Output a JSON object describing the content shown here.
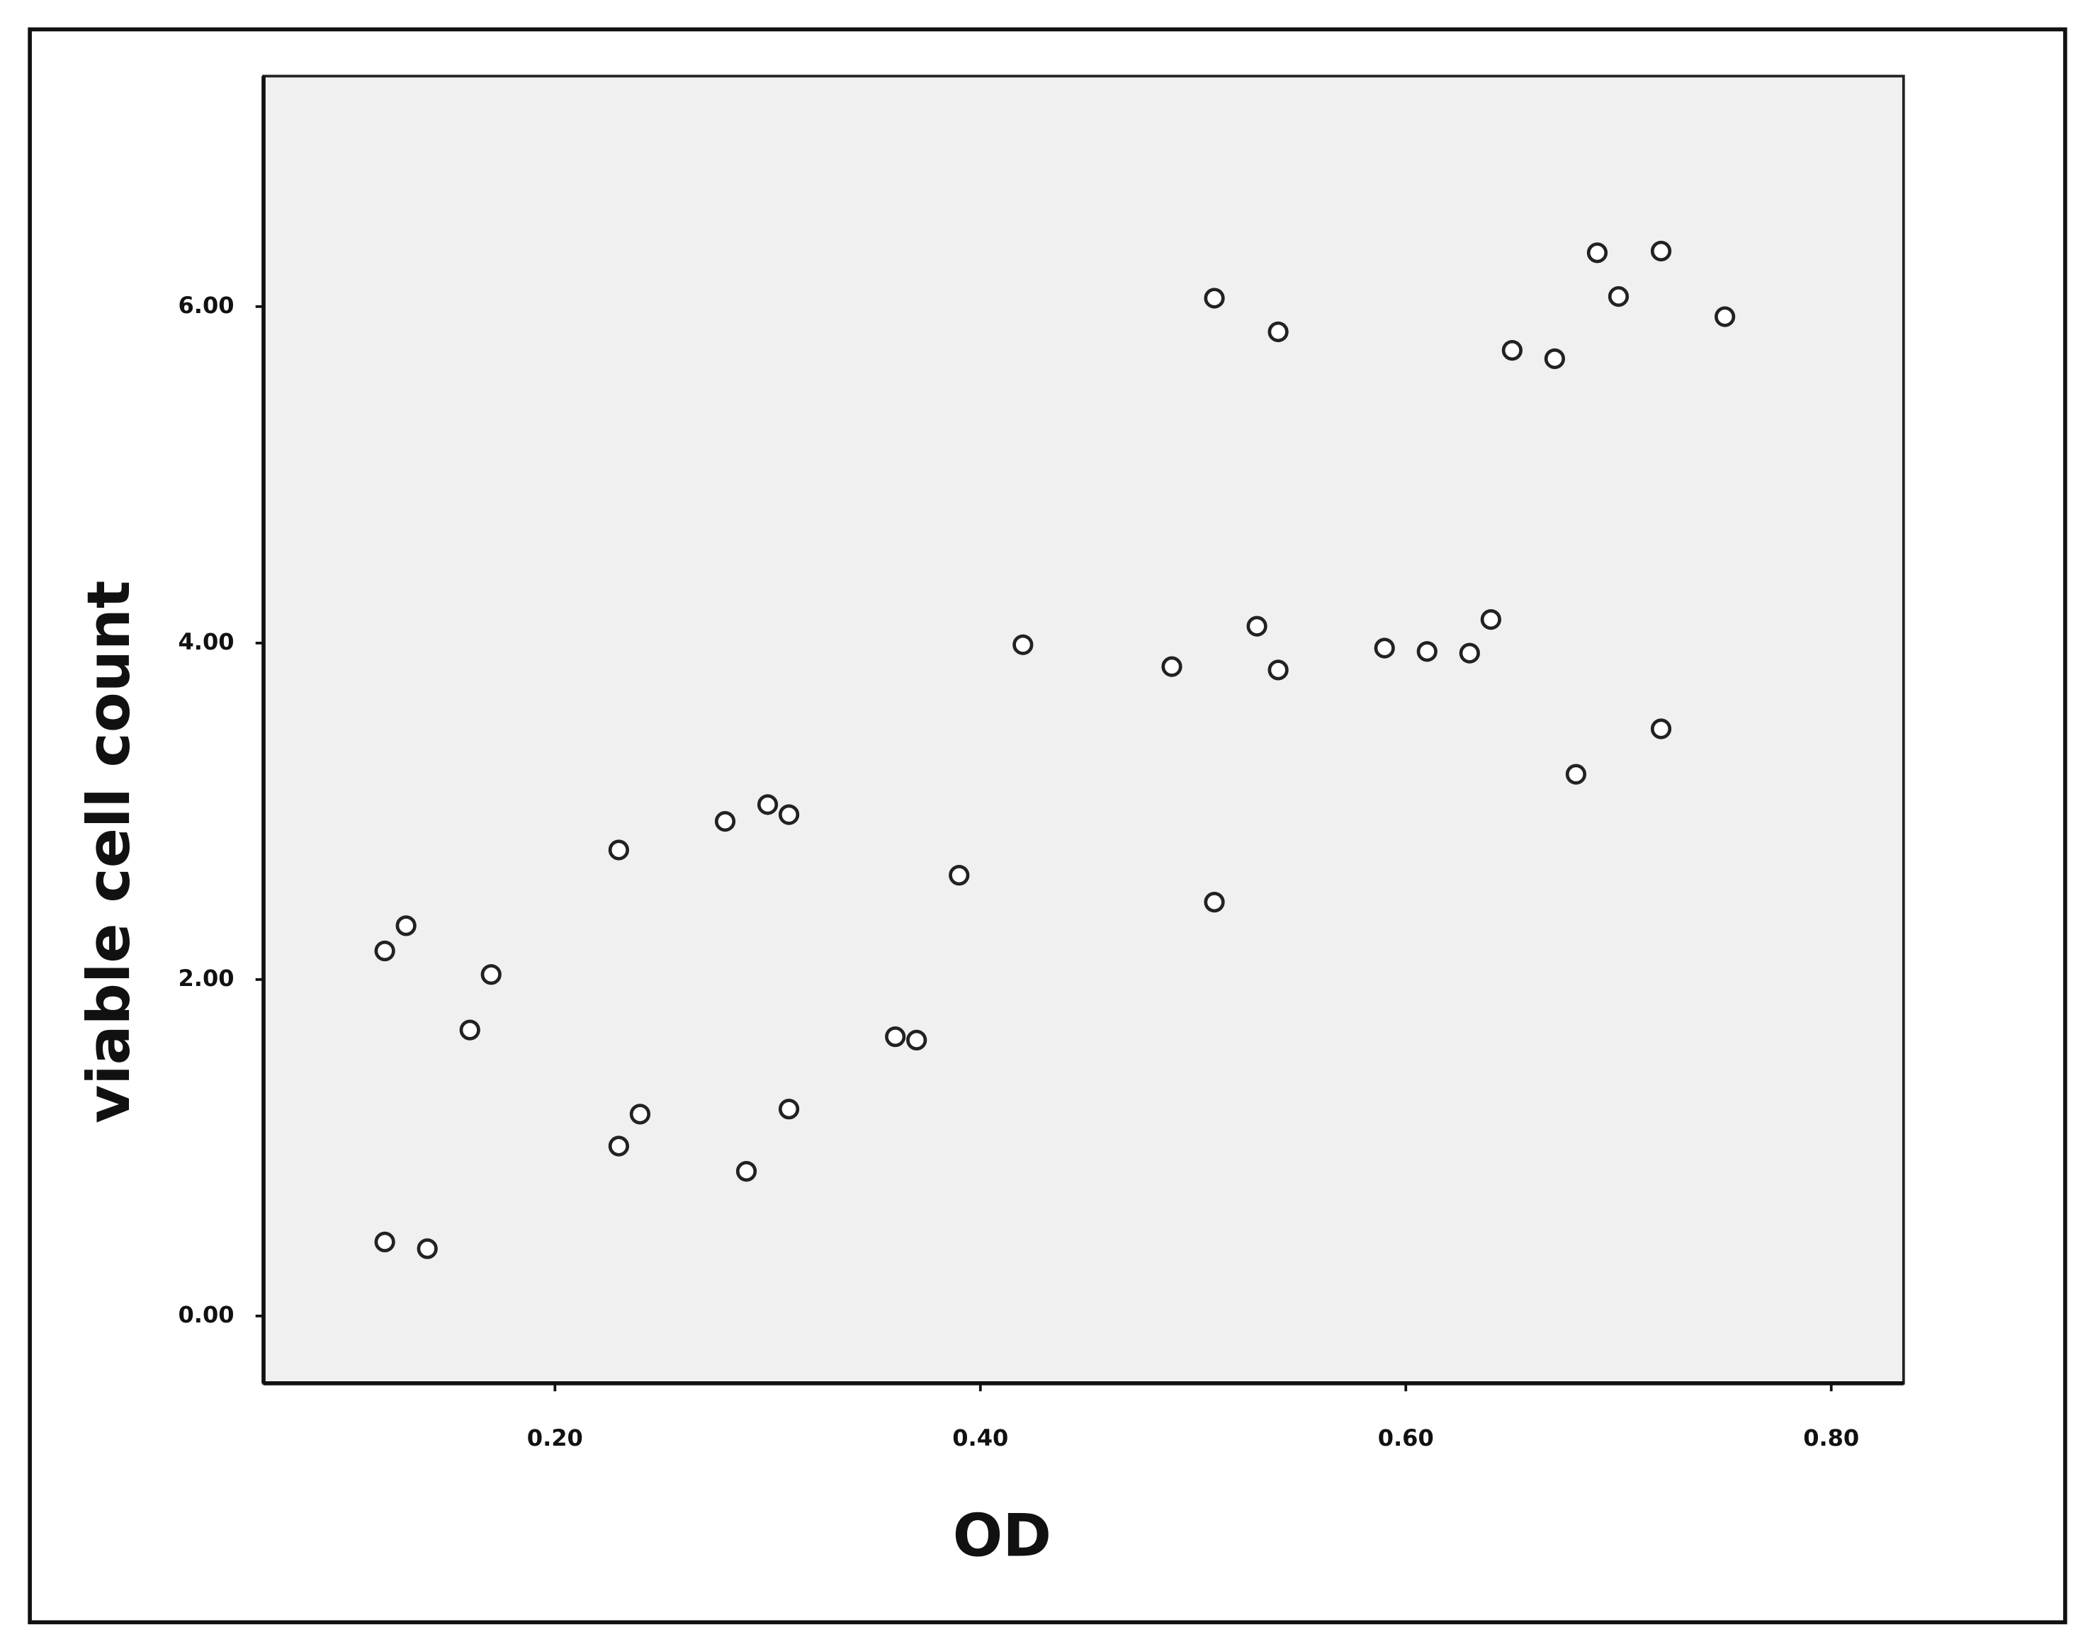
{
  "chart_data": {
    "type": "scatter",
    "x_label": "OD",
    "y_label": "viable cell count",
    "x": [
      0.12,
      0.13,
      0.17,
      0.16,
      0.12,
      0.14,
      0.23,
      0.23,
      0.24,
      0.28,
      0.3,
      0.31,
      0.31,
      0.29,
      0.36,
      0.37,
      0.39,
      0.42,
      0.49,
      0.51,
      0.51,
      0.54,
      0.53,
      0.54,
      0.59,
      0.61,
      0.63,
      0.64,
      0.65,
      0.67,
      0.68,
      0.69,
      0.7,
      0.72,
      0.72,
      0.75
    ],
    "values": [
      2.17,
      2.32,
      2.03,
      1.7,
      0.44,
      0.4,
      2.77,
      1.01,
      1.2,
      2.94,
      3.04,
      2.98,
      1.23,
      0.86,
      1.66,
      1.64,
      2.62,
      3.99,
      3.86,
      2.46,
      6.05,
      5.85,
      4.1,
      3.84,
      3.97,
      3.95,
      3.94,
      4.14,
      5.74,
      5.69,
      3.22,
      6.32,
      6.06,
      6.33,
      3.49,
      5.94
    ],
    "color": "#222222",
    "xlim": [
      0.063,
      0.834
    ],
    "ylim": [
      -0.4,
      7.37
    ],
    "xticks": [
      {
        "value": 0.2,
        "label": "0.20"
      },
      {
        "value": 0.4,
        "label": "0.40"
      },
      {
        "value": 0.6,
        "label": "0.60"
      },
      {
        "value": 0.8,
        "label": "0.80"
      }
    ],
    "yticks": [
      {
        "value": 0,
        "label": "0.00"
      },
      {
        "value": 2,
        "label": "2.00"
      },
      {
        "value": 4,
        "label": "4.00"
      },
      {
        "value": 6,
        "label": "6.00"
      }
    ]
  }
}
